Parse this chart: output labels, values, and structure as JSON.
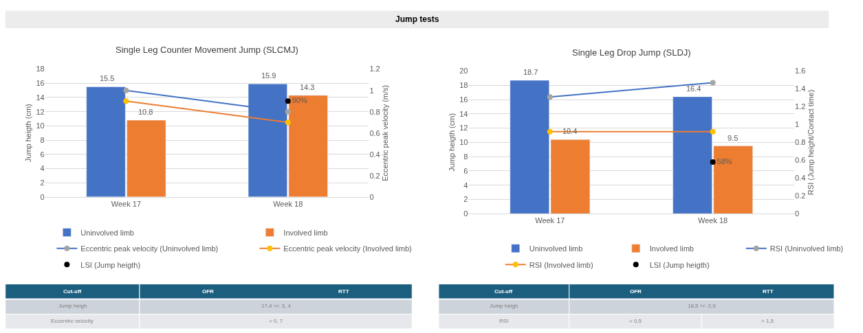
{
  "chart_data": [
    {
      "type": "other",
      "title": "Jump tests"
    },
    {
      "type": "bar",
      "title": "Single Leg Counter Movement Jump (SLCMJ)",
      "categories": [
        "Week 17",
        "Week 18"
      ],
      "ylabel": "Jump heigth (cm)",
      "y2label": "Eccentric peak velocity (m/s)",
      "ylim": [
        0,
        18
      ],
      "yticks": [
        0,
        2,
        4,
        6,
        8,
        10,
        12,
        14,
        16,
        18
      ],
      "y2lim": [
        0,
        1.2
      ],
      "y2ticks": [
        0,
        0.2,
        0.4,
        0.6,
        0.8,
        1,
        1.2
      ],
      "grid": "y",
      "legend": "bottom",
      "series": [
        {
          "name": "Uninvolved limb",
          "type": "bar",
          "color": "#4472c4",
          "values": [
            15.5,
            15.9
          ],
          "value_labels": [
            "15.5",
            "15.9"
          ]
        },
        {
          "name": "Involved limb",
          "type": "bar",
          "color": "#ed7d31",
          "values": [
            10.8,
            14.3
          ],
          "value_labels": [
            "10.8",
            "14.3"
          ]
        },
        {
          "name": "Eccentric peak velocity (Uninvolved limb)",
          "type": "line",
          "axis": "y2",
          "color": "#4472c4",
          "colors": [
            "#a5a5a5",
            "#a5a5a5"
          ],
          "marker": "circle",
          "values": [
            1.0,
            0.8
          ]
        },
        {
          "name": "Eccentric peak velocity (Involved limb)",
          "type": "line",
          "axis": "y2",
          "color": "#ed7d31",
          "colors": [
            "#ffc000",
            "#ffc000"
          ],
          "marker": "circle",
          "values": [
            0.9,
            0.7
          ]
        },
        {
          "name": "LSI (Jump heigth)",
          "type": "scatter",
          "axis": "y2",
          "color": "#000000",
          "marker": "circle",
          "values": [
            null,
            0.9
          ],
          "value_labels": [
            null,
            "90%"
          ]
        }
      ]
    },
    {
      "type": "bar",
      "title": "Single Leg Drop Jump (SLDJ)",
      "categories": [
        "Week 17",
        "Week 18"
      ],
      "ylabel": "Jump heigth (cm)",
      "y2label": "RSI (Jump height/Contact time)",
      "ylim": [
        0,
        20
      ],
      "yticks": [
        0,
        2,
        4,
        6,
        8,
        10,
        12,
        14,
        16,
        18,
        20
      ],
      "y2lim": [
        0,
        1.6
      ],
      "y2ticks": [
        0,
        0.2,
        0.4,
        0.6,
        0.8,
        1,
        1.2,
        1.4,
        1.6
      ],
      "grid": "y",
      "legend": "bottom",
      "series": [
        {
          "name": "Uninvolved limb",
          "type": "bar",
          "color": "#4472c4",
          "values": [
            18.7,
            16.4
          ],
          "value_labels": [
            "18.7",
            "16.4"
          ]
        },
        {
          "name": "Involved limb",
          "type": "bar",
          "color": "#ed7d31",
          "values": [
            10.4,
            9.5
          ],
          "value_labels": [
            "10.4",
            "9.5"
          ]
        },
        {
          "name": "RSI (Uninvolved limb)",
          "type": "line",
          "axis": "y2",
          "color": "#4472c4",
          "colors": [
            "#a5a5a5",
            "#a5a5a5"
          ],
          "marker": "circle",
          "values": [
            1.31,
            1.47
          ]
        },
        {
          "name": "RSI (Involved limb)",
          "type": "line",
          "axis": "y2",
          "color": "#ed7d31",
          "colors": [
            "#ffc000",
            "#ffc000"
          ],
          "marker": "circle",
          "values": [
            0.92,
            0.92
          ]
        },
        {
          "name": "LSI (Jump heigth)",
          "type": "scatter",
          "axis": "y2",
          "color": "#000000",
          "marker": "circle",
          "values": [
            null,
            0.58
          ],
          "value_labels": [
            null,
            "58%"
          ]
        }
      ]
    },
    {
      "type": "other",
      "categories": [
        "Cut-off",
        "OFR",
        "RTT"
      ],
      "y_categories": [
        "Jump heigh",
        "Eccentric velocity"
      ],
      "cell_labels": [
        [
          "17,4 +/- 3, 4",
          null
        ],
        [
          "> 0, 7",
          null
        ]
      ]
    },
    {
      "type": "other",
      "categories": [
        "Cut-off",
        "OFR",
        "RTT"
      ],
      "y_categories": [
        "Jump heigh",
        "RSI"
      ],
      "cell_labels": [
        [
          "18,5 +/- 2,9",
          null
        ],
        [
          "> 0,5",
          "> 1,5"
        ]
      ]
    }
  ]
}
